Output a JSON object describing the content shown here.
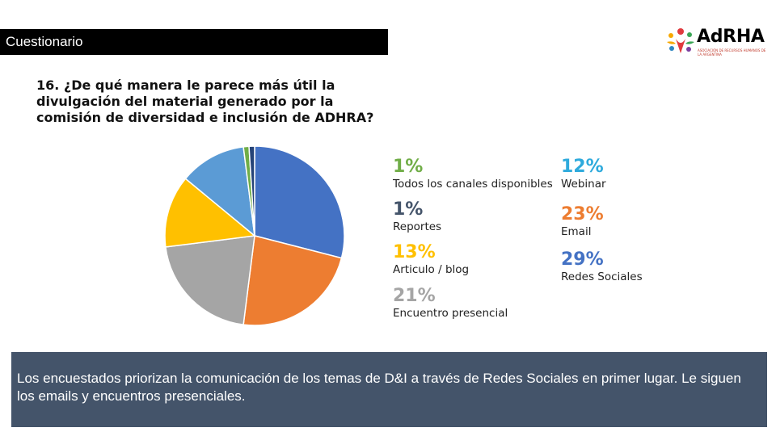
{
  "header": {
    "title": "Cuestionario"
  },
  "logo": {
    "text": "AdRHA",
    "subtitle": "ASOCIACIÓN DE RECURSOS HUMANOS DE LA ARGENTINA",
    "colors": [
      "#e03a3e",
      "#f7a800",
      "#3aa655",
      "#2e86c1",
      "#7b3fa0"
    ]
  },
  "question": {
    "text": "16. ¿De qué manera le parece más útil la divulgación del material generado por la comisión de diversidad e inclusión de ADHRA?"
  },
  "chart_data": {
    "type": "pie",
    "title": "",
    "slices": [
      {
        "label": "Redes Sociales",
        "value": 29,
        "pct": "29%",
        "color": "#4472c4",
        "pct_color": "#4472c4"
      },
      {
        "label": "Email",
        "value": 23,
        "pct": "23%",
        "color": "#ed7d31",
        "pct_color": "#ed7d31"
      },
      {
        "label": "Encuentro presencial",
        "value": 21,
        "pct": "21%",
        "color": "#a5a5a5",
        "pct_color": "#a5a5a5"
      },
      {
        "label": "Articulo / blog",
        "value": 13,
        "pct": "13%",
        "color": "#ffc000",
        "pct_color": "#ffc000"
      },
      {
        "label": "Webinar",
        "value": 12,
        "pct": "12%",
        "color": "#5b9bd5",
        "pct_color": "#2eaadc"
      },
      {
        "label": "Todos los canales disponibles",
        "value": 1,
        "pct": "1%",
        "color": "#70ad47",
        "pct_color": "#70ad47"
      },
      {
        "label": "Reportes",
        "value": 1,
        "pct": "1%",
        "color": "#264478",
        "pct_color": "#44546a"
      }
    ]
  },
  "summary": {
    "text": "Los encuestados priorizan la comunicación de los temas de D&I a través de Redes Sociales en primer lugar. Le siguen los emails y encuentros presenciales."
  }
}
